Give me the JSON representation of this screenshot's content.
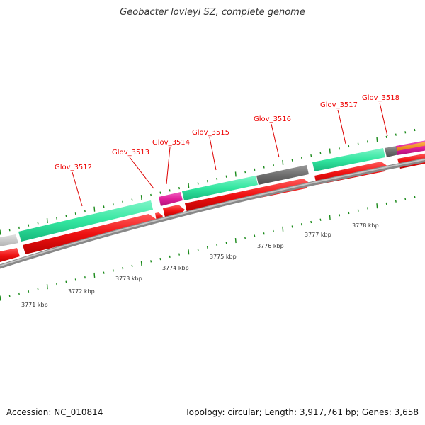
{
  "title": "Geobacter lovleyi SZ, complete genome",
  "footer": {
    "accession": "Accession: NC_010814",
    "summary": "Topology: circular; Length: 3,917,761 bp; Genes: 3,658"
  },
  "colors": {
    "gene_label": "#ee0000",
    "leader": "#dd0000",
    "tick": "#1a8a1a",
    "cds_forward": "#ee1111",
    "feature_green": "#33e6a0",
    "feature_grey": "#707070",
    "feature_magenta": "#e0209a",
    "backbone": "#888888"
  },
  "genes": [
    {
      "label": "Glov_3512"
    },
    {
      "label": "Glov_3513"
    },
    {
      "label": "Glov_3514"
    },
    {
      "label": "Glov_3515"
    },
    {
      "label": "Glov_3516"
    },
    {
      "label": "Glov_3517"
    },
    {
      "label": "Glov_3518"
    }
  ],
  "scale": [
    {
      "label": "3771 kbp"
    },
    {
      "label": "3772 kbp"
    },
    {
      "label": "3773 kbp"
    },
    {
      "label": "3774 kbp"
    },
    {
      "label": "3775 kbp"
    },
    {
      "label": "3776 kbp"
    },
    {
      "label": "3777 kbp"
    },
    {
      "label": "3778 kbp"
    }
  ]
}
